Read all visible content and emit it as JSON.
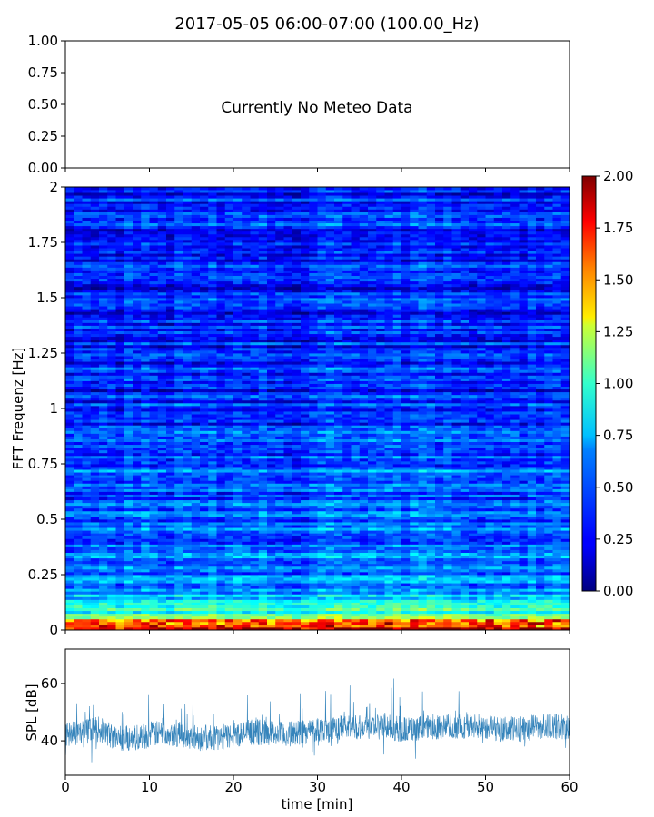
{
  "title": "2017-05-05 06:00-07:00 (100.00_Hz)",
  "meteo": {
    "message": "Currently No Meteo Data",
    "ylim": [
      0,
      1
    ],
    "yticks": [
      "0.00",
      "0.25",
      "0.50",
      "0.75",
      "1.00"
    ]
  },
  "chart_data": [
    {
      "type": "heatmap",
      "title": "2017-05-05 06:00-07:00 (100.00_Hz)",
      "xlabel": "",
      "ylabel": "FFT Frequenz [Hz]",
      "xlim": [
        0,
        60
      ],
      "ylim": [
        0,
        2
      ],
      "yticks": [
        "0",
        "0.25",
        "0.5",
        "0.75",
        "1",
        "1.25",
        "1.5",
        "1.75",
        "2"
      ],
      "colormap": "jet",
      "colorbar": {
        "range": [
          0,
          2
        ],
        "ticks": [
          "0.00",
          "0.25",
          "0.50",
          "0.75",
          "1.00",
          "1.25",
          "1.50",
          "1.75",
          "2.00"
        ]
      },
      "description_values": {
        "frequency_profile_hz": [
          0,
          0.05,
          0.1,
          0.2,
          0.5,
          0.8,
          1.0,
          1.5,
          2.0
        ],
        "typical_intensity": [
          1.6,
          1.0,
          0.75,
          0.5,
          0.4,
          0.45,
          0.3,
          0.28,
          0.3
        ]
      }
    },
    {
      "type": "line",
      "xlabel": "time [min]",
      "ylabel": "SPL [dB]",
      "xlim": [
        0,
        60
      ],
      "ylim": [
        28,
        72
      ],
      "xticks": [
        "0",
        "10",
        "20",
        "30",
        "40",
        "50",
        "60"
      ],
      "yticks": [
        "40",
        "60"
      ],
      "color": "#1f77b4",
      "series": [
        {
          "x": [
            0,
            2,
            4,
            6,
            8,
            10,
            12,
            14,
            16,
            18,
            20,
            22,
            24,
            26,
            28,
            30,
            32,
            34,
            36,
            38,
            40,
            42,
            44,
            46,
            48,
            50,
            52,
            54,
            56,
            58,
            60
          ],
          "values": [
            42,
            43,
            44,
            41,
            41,
            42,
            43,
            42,
            41,
            41,
            42,
            43,
            43,
            42,
            43,
            44,
            44,
            45,
            45,
            45,
            44,
            44,
            45,
            45,
            45,
            45,
            44,
            44,
            45,
            45,
            45
          ]
        }
      ]
    }
  ]
}
